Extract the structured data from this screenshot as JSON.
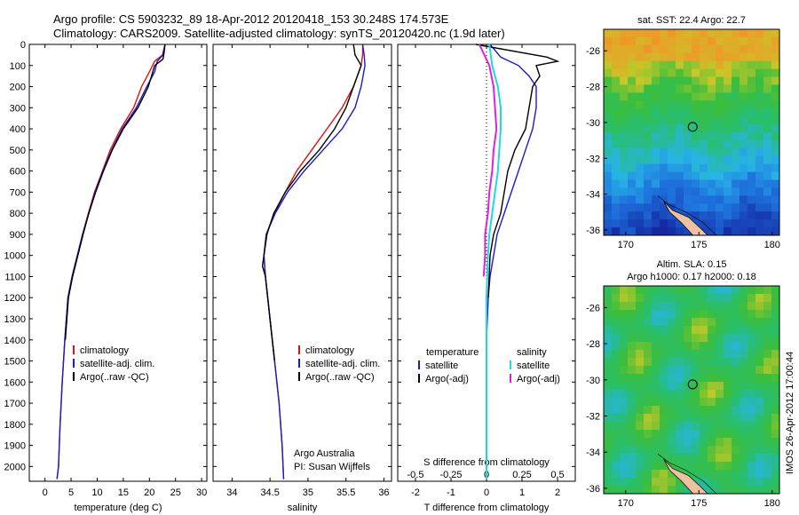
{
  "header": {
    "line1": "Argo profile: CS 5903232_89 18-Apr-2012 20120418_153 30.248S 174.573E",
    "line2": "Climatology: CARS2009. Satellite-adjusted climatology: synTS_20120420.nc (1.9d later)"
  },
  "colors": {
    "climatology": "#e01010",
    "satellite": "#1a1ad0",
    "argo": "#000000",
    "t_sat": "#1a1ad0",
    "s_sat": "#20d8e0",
    "s_argo": "#e020e0"
  },
  "chart_data": [
    {
      "type": "line",
      "xlabel": "temperature (deg C)",
      "xlim": [
        -3,
        31
      ],
      "xticks": [
        0,
        5,
        10,
        15,
        20,
        25,
        30
      ],
      "ylim": [
        0,
        2070
      ],
      "yticks": [
        0,
        100,
        200,
        300,
        400,
        500,
        600,
        700,
        800,
        900,
        1000,
        1100,
        1200,
        1300,
        1400,
        1500,
        1600,
        1700,
        1800,
        1900,
        2000
      ],
      "y_reversed": true,
      "legend": [
        "climatology",
        "satellite-adj. clim.",
        "Argo(..raw -QC)"
      ],
      "legend_position": "lower-right",
      "series": [
        {
          "name": "climatology",
          "x": [
            23,
            22.5,
            21,
            20,
            18.5,
            17,
            14.5,
            12.5,
            11,
            9.5,
            8.3,
            7.2,
            6.2,
            5.2,
            4.4,
            3.8,
            3.3,
            2.9,
            2.6,
            2.3
          ],
          "y": [
            0,
            50,
            80,
            130,
            200,
            300,
            400,
            500,
            600,
            700,
            800,
            900,
            1000,
            1100,
            1200,
            1400,
            1600,
            1800,
            2000,
            2060
          ]
        },
        {
          "name": "satellite-adj. clim.",
          "x": [
            23,
            22.6,
            21.5,
            21,
            19.5,
            17.5,
            14.8,
            12.8,
            11.1,
            9.6,
            8.4,
            7.2,
            6.2,
            5.2,
            4.4,
            3.8,
            3.3,
            2.9,
            2.6,
            2.3
          ],
          "y": [
            0,
            50,
            80,
            130,
            200,
            300,
            400,
            500,
            600,
            700,
            800,
            900,
            1000,
            1100,
            1200,
            1400,
            1600,
            1800,
            2000,
            2060
          ]
        },
        {
          "name": "Argo(..raw -QC)",
          "x": [
            23,
            22.8,
            22.6,
            21,
            19.8,
            17.8,
            15,
            12.9,
            11.2,
            9.7,
            8.4,
            7.3,
            6.3,
            5.3,
            4.5,
            3.9
          ],
          "y": [
            0,
            40,
            70,
            100,
            200,
            300,
            400,
            500,
            600,
            700,
            800,
            900,
            1000,
            1100,
            1200,
            1400
          ]
        }
      ]
    },
    {
      "type": "line",
      "xlabel": "salinity",
      "xlim": [
        33.75,
        36.1
      ],
      "xticks": [
        34,
        34.5,
        35,
        35.5,
        36
      ],
      "ylim": [
        0,
        2070
      ],
      "y_reversed": true,
      "legend": [
        "climatology",
        "satellite-adj. clim.",
        "Argo(..raw -QC)"
      ],
      "legend_position": "lower-right",
      "annotation": "Argo Australia\nPI: Susan Wijffels",
      "series": [
        {
          "name": "climatology",
          "x": [
            35.72,
            35.72,
            35.7,
            35.6,
            35.45,
            35.25,
            35.05,
            34.85,
            34.7,
            34.56,
            34.45,
            34.42,
            34.44,
            34.5,
            34.56,
            34.62,
            34.66,
            34.68
          ],
          "y": [
            0,
            50,
            100,
            200,
            300,
            400,
            500,
            600,
            700,
            800,
            900,
            1000,
            1100,
            1300,
            1500,
            1700,
            1900,
            2060
          ]
        },
        {
          "name": "satellite-adj. clim.",
          "x": [
            35.72,
            35.74,
            35.75,
            35.7,
            35.62,
            35.45,
            35.2,
            34.95,
            34.73,
            34.57,
            34.45,
            34.42,
            34.44,
            34.5,
            34.56,
            34.62,
            34.66,
            34.68
          ],
          "y": [
            0,
            50,
            100,
            200,
            300,
            400,
            500,
            600,
            700,
            800,
            900,
            1000,
            1100,
            1300,
            1500,
            1700,
            1900,
            2060
          ]
        },
        {
          "name": "Argo(..raw -QC)",
          "x": [
            35.6,
            35.62,
            35.7,
            35.6,
            35.5,
            35.35,
            35.15,
            34.9,
            34.7,
            34.55,
            34.46,
            34.42,
            34.4,
            34.44,
            34.5,
            34.56
          ],
          "y": [
            0,
            50,
            100,
            200,
            300,
            400,
            500,
            600,
            700,
            800,
            900,
            1000,
            1050,
            1100,
            1300,
            1500
          ]
        }
      ]
    },
    {
      "type": "line",
      "xlabel": "T difference from climatology",
      "xlabel_top": "S difference from climatology",
      "xlim": [
        -2.5,
        2.5
      ],
      "xticks": [
        -2,
        -1,
        0,
        1,
        2
      ],
      "sticks": [
        "-0.5",
        "-0.25",
        "0",
        "0.25",
        "0.5"
      ],
      "ylim": [
        0,
        2070
      ],
      "y_reversed": true,
      "legend_temperature": {
        "title": "temperature",
        "entries": [
          "satellite",
          "Argo(-adj)"
        ]
      },
      "legend_salinity": {
        "title": "salinity",
        "entries": [
          "satellite",
          "Argo(-adj)"
        ]
      },
      "legend_position": "lower",
      "series": [
        {
          "name": "satellite",
          "group": "temperature",
          "x": [
            0.1,
            0.4,
            0.9,
            1.2,
            1.4,
            1.4,
            1.3,
            1.1,
            0.9,
            0.7,
            0.5,
            0.3,
            0.2,
            0.1,
            0.05,
            0,
            0
          ],
          "y": [
            0,
            60,
            100,
            150,
            200,
            300,
            400,
            500,
            600,
            700,
            800,
            900,
            1000,
            1100,
            1200,
            1400,
            2060
          ]
        },
        {
          "name": "Argo(-adj)",
          "group": "temperature",
          "x": [
            -0.3,
            1.7,
            2.0,
            1.4,
            1.5,
            1.3,
            1.2,
            1.1,
            0.8,
            0.6,
            0.5,
            0.4,
            0.2,
            0.1,
            0.05
          ],
          "y": [
            0,
            60,
            80,
            100,
            150,
            200,
            300,
            400,
            500,
            600,
            700,
            800,
            900,
            1000,
            1200
          ]
        },
        {
          "name": "satellite",
          "group": "salinity",
          "x": [
            0.02,
            0.04,
            0.08,
            0.1,
            0.1,
            0.09,
            0.08,
            0.06,
            0.04,
            0.02,
            0.01,
            0,
            0,
            0
          ],
          "y": [
            0,
            100,
            200,
            300,
            400,
            500,
            600,
            700,
            800,
            900,
            1000,
            1200,
            1500,
            2060
          ]
        },
        {
          "name": "Argo(-adj)",
          "group": "salinity",
          "x": [
            -0.05,
            0.02,
            0.05,
            0.06,
            0.07,
            0.05,
            0.04,
            0.02,
            0.01,
            -0.01,
            -0.01,
            -0.02
          ],
          "y": [
            0,
            100,
            200,
            300,
            400,
            500,
            600,
            700,
            800,
            900,
            1000,
            1100
          ]
        }
      ]
    }
  ],
  "maps": [
    {
      "title": "sat. SST: 22.4  Argo: 22.7",
      "xticks": [
        "170",
        "175",
        "180"
      ],
      "yticks": [
        "-26",
        "-28",
        "-30",
        "-32",
        "-34",
        "-36"
      ],
      "xlim": [
        168.5,
        180.5
      ],
      "ylim": [
        -36.3,
        -24.8
      ],
      "marker": {
        "lon": 174.573,
        "lat": -30.248
      }
    },
    {
      "title_line1": "Altim. SLA: 0.15",
      "title_line2": "Argo h1000: 0.17 h2000: 0.18",
      "xticks": [
        "170",
        "175",
        "180"
      ],
      "yticks": [
        "-26",
        "-28",
        "-30",
        "-32",
        "-34",
        "-36"
      ],
      "xlim": [
        168.5,
        180.5
      ],
      "ylim": [
        -36.3,
        -24.8
      ],
      "marker": {
        "lon": 174.573,
        "lat": -30.248
      }
    }
  ],
  "footer": {
    "stamp": "IMOS 26-Apr-2012 17:00:44"
  }
}
